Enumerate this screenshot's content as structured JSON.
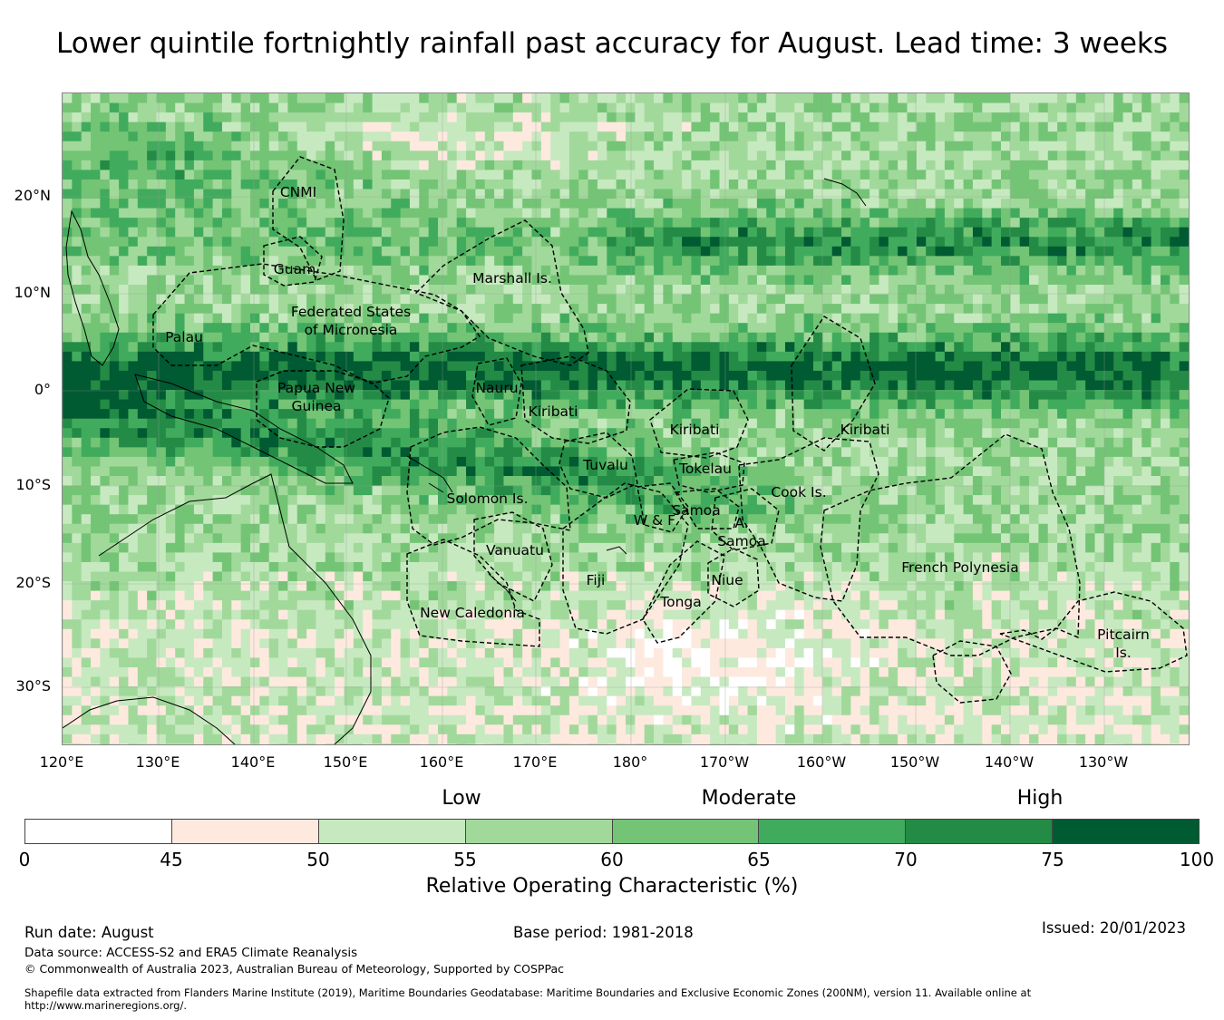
{
  "title": "Lower quintile fortnightly rainfall past accuracy for August. Lead time: 3 weeks",
  "lat_labels": [
    "20°N",
    "10°N",
    "0°",
    "10°S",
    "20°S",
    "30°S"
  ],
  "lon_labels": [
    "120°E",
    "130°E",
    "140°E",
    "150°E",
    "160°E",
    "170°E",
    "180°",
    "170°W",
    "160°W",
    "150°W",
    "140°W",
    "130°W"
  ],
  "regions": [
    {
      "name": "CNMI"
    },
    {
      "name": "Guam"
    },
    {
      "name": "Marshall Is."
    },
    {
      "name": "Federated States\nof Micronesia"
    },
    {
      "name": "Palau"
    },
    {
      "name": "Papua New\nGuinea"
    },
    {
      "name": "Nauru"
    },
    {
      "name": "Kiribati"
    },
    {
      "name": "Kiribati"
    },
    {
      "name": "Kiribati"
    },
    {
      "name": "Tuvalu"
    },
    {
      "name": "Tokelau"
    },
    {
      "name": "Cook Is."
    },
    {
      "name": "Solomon Is."
    },
    {
      "name": "Samoa"
    },
    {
      "name": "W & F"
    },
    {
      "name": "A.\nSamoa"
    },
    {
      "name": "Vanuatu"
    },
    {
      "name": "Fiji"
    },
    {
      "name": "Niue"
    },
    {
      "name": "Tonga"
    },
    {
      "name": "French Polynesia"
    },
    {
      "name": "New Caledonia"
    },
    {
      "name": "Pitcairn\nIs."
    }
  ],
  "colorbar": {
    "categories": [
      "Low",
      "Moderate",
      "High"
    ],
    "bins": [
      {
        "from": 0,
        "to": 45,
        "color": "#ffffff"
      },
      {
        "from": 45,
        "to": 50,
        "color": "#fee9df"
      },
      {
        "from": 50,
        "to": 55,
        "color": "#c7e9c0"
      },
      {
        "from": 55,
        "to": 60,
        "color": "#a1d99b"
      },
      {
        "from": 60,
        "to": 65,
        "color": "#74c476"
      },
      {
        "from": 65,
        "to": 70,
        "color": "#41ab5d"
      },
      {
        "from": 70,
        "to": 75,
        "color": "#238b45"
      },
      {
        "from": 75,
        "to": 100,
        "color": "#005a32"
      }
    ],
    "ticks": [
      "0",
      "45",
      "50",
      "55",
      "60",
      "65",
      "70",
      "75",
      "100"
    ],
    "label": "Relative Operating Characteristic (%)"
  },
  "footer": {
    "run_date": "Run date: August",
    "base_period": "Base period: 1981-2018",
    "issued": "Issued: 20/01/2023",
    "data_source": "Data source: ACCESS-S2 and ERA5 Climate Reanalysis",
    "copyright": "© Commonwealth of Australia 2023, Australian Bureau of Meteorology, Supported by COSPPac",
    "shapefile_1": "Shapefile data extracted from Flanders Marine Institute (2019), Maritime Boundaries Geodatabase: Maritime Boundaries and Exclusive Economic Zones (200NM), version 11. Available online at",
    "shapefile_2": "http://www.marineregions.org/."
  }
}
